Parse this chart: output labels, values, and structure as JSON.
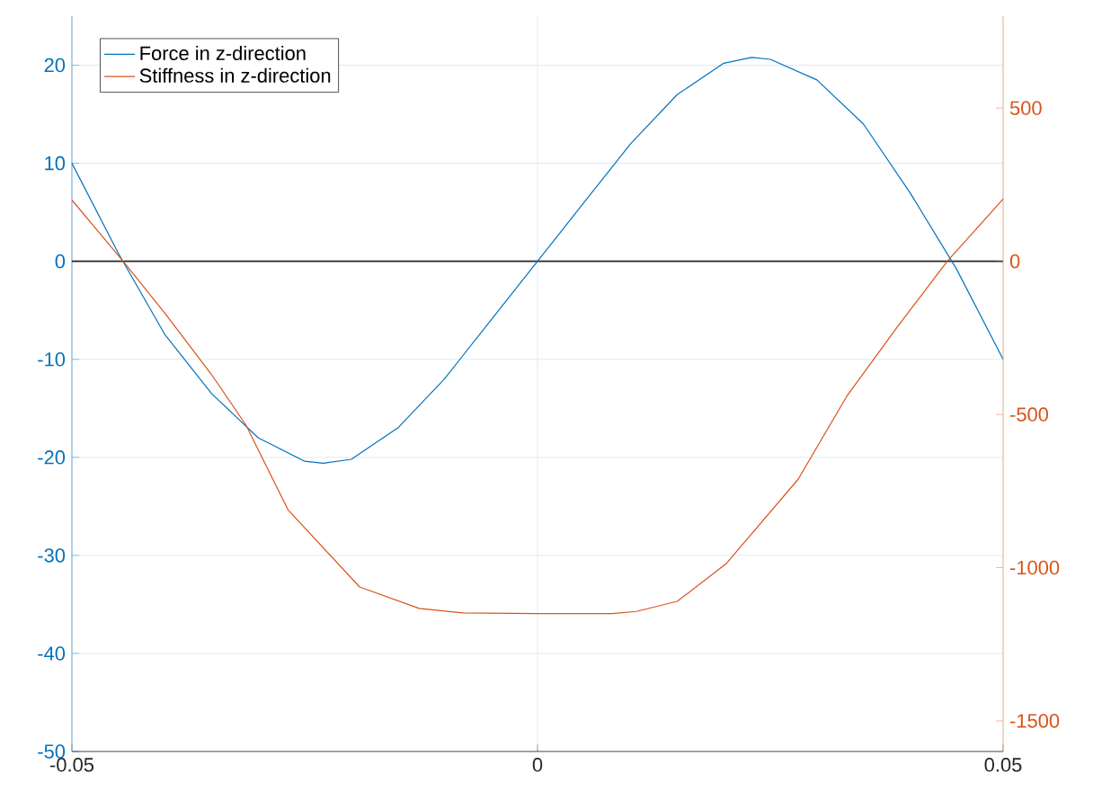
{
  "chart_data": {
    "type": "line",
    "xlim": [
      -0.05,
      0.05
    ],
    "xticks": [
      -0.05,
      0,
      0.05
    ],
    "ylim": [
      -50,
      25
    ],
    "yticks": [
      -50,
      -40,
      -30,
      -20,
      -10,
      0,
      10,
      20
    ],
    "y2lim": [
      -1600,
      800
    ],
    "y2ticks": [
      -1500,
      -1000,
      -500,
      0,
      500
    ],
    "grid": true,
    "legend": "top left",
    "line_style": "solid",
    "ref_lines": [
      {
        "axis": "y",
        "value": 0,
        "color": "#262626"
      }
    ],
    "series": [
      {
        "name": "Force in z-direction",
        "color": "#0072bd",
        "axis": "y",
        "x": [
          -0.05,
          -0.045,
          -0.04,
          -0.035,
          -0.03,
          -0.025,
          -0.023,
          -0.02,
          -0.015,
          -0.01,
          -0.005,
          0,
          0.005,
          0.01,
          0.015,
          0.02,
          0.023,
          0.025,
          0.03,
          0.035,
          0.04,
          0.045,
          0.05
        ],
        "values": [
          10,
          0.8,
          -7.5,
          -13.5,
          -18,
          -20.4,
          -20.6,
          -20.2,
          -17,
          -12,
          -6,
          0,
          6,
          12,
          17,
          20.2,
          20.8,
          20.6,
          18.5,
          14,
          7,
          -0.8,
          -10
        ]
      },
      {
        "name": "Stiffness in z-direction",
        "color": "#d95319",
        "axis": "y2",
        "x": [
          -0.05,
          -0.0445,
          -0.04,
          -0.035,
          -0.0313,
          -0.0268,
          -0.0191,
          -0.0127,
          -0.008,
          0,
          0.008,
          0.0106,
          0.015,
          0.0203,
          0.028,
          0.0332,
          0.0385,
          0.044,
          0.05
        ],
        "values": [
          200,
          0,
          -170,
          -370,
          -535,
          -811,
          -1063,
          -1133,
          -1148,
          -1150,
          -1150,
          -1143,
          -1110,
          -986,
          -711,
          -441,
          -220,
          0,
          203
        ]
      }
    ]
  }
}
